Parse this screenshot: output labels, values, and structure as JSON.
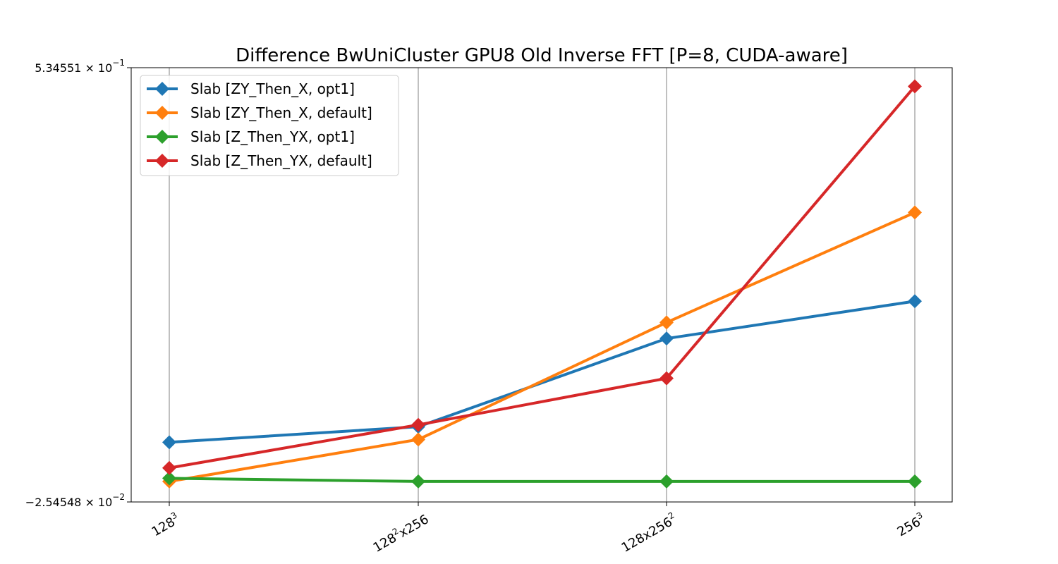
{
  "chart_data": {
    "type": "line",
    "title": "Difference BwUniCluster GPU8 Old Inverse FFT [P=8, CUDA-aware]",
    "xlabel": "",
    "ylabel": "",
    "categories": [
      {
        "base": "128",
        "sup": "3",
        "rest": ""
      },
      {
        "base": "128",
        "sup": "2",
        "rest": "x256"
      },
      {
        "base": "128x256",
        "sup": "2",
        "rest": ""
      },
      {
        "base": "256",
        "sup": "3",
        "rest": ""
      }
    ],
    "y_scale": "log",
    "ylim": [
      -0.0254548,
      0.534551
    ],
    "y_ticks": [
      {
        "mant": "5.34551",
        "times": "×",
        "exp": "10",
        "pow": "−1"
      },
      {
        "mant": "−2.54548",
        "times": "×",
        "exp": "10",
        "pow": "−2"
      }
    ],
    "grid": {
      "x": true,
      "y": false
    },
    "legend_position": "upper-left",
    "series": [
      {
        "name": "Slab [ZY_Then_X, opt1]",
        "color": "#1f77b4",
        "marker": "diamond",
        "values": [
          0.0515,
          0.0716,
          0.1853,
          0.2334
        ]
      },
      {
        "name": "Slab [ZY_Then_X, default]",
        "color": "#ff7f0e",
        "marker": "diamond",
        "values": [
          0.001,
          0.0551,
          0.206,
          0.3478
        ]
      },
      {
        "name": "Slab [Z_Then_YX, opt1]",
        "color": "#2ca02c",
        "marker": "diamond",
        "values": [
          0.0051,
          0.001,
          0.001,
          0.001
        ]
      },
      {
        "name": "Slab [Z_Then_YX, default]",
        "color": "#d62728",
        "marker": "diamond",
        "values": [
          0.0184,
          0.074,
          0.134,
          0.5105
        ]
      }
    ]
  }
}
